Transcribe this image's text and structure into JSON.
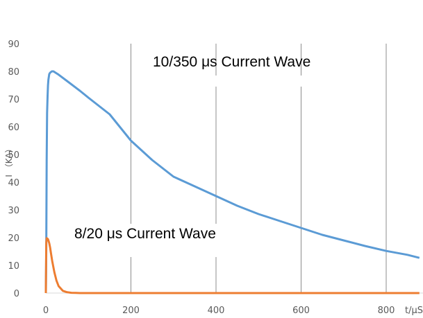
{
  "chart_data": {
    "type": "line",
    "xlabel": "t/μS",
    "ylabel": "I （KA）",
    "xlim": [
      0,
      890
    ],
    "ylim": [
      0,
      90
    ],
    "xticks": [
      0,
      200,
      400,
      600,
      800
    ],
    "yticks": [
      0,
      10,
      20,
      30,
      40,
      50,
      60,
      70,
      80,
      90
    ],
    "grid": "vertical",
    "annotations": [
      {
        "text": "10/350 μs  Current Wave",
        "series": 0
      },
      {
        "text": "8/20 μs Current Wave",
        "series": 1
      }
    ],
    "series": [
      {
        "color": "#5b9bd5",
        "x": [
          0,
          1,
          2,
          3,
          4,
          5,
          6,
          8,
          10,
          14,
          18,
          22,
          30,
          50,
          80,
          100,
          150,
          200,
          250,
          300,
          350,
          400,
          450,
          500,
          550,
          600,
          650,
          700,
          750,
          800,
          850,
          878
        ],
        "y": [
          0,
          15,
          48,
          65,
          71,
          75,
          77,
          79,
          79.5,
          80,
          80,
          79.6,
          78.8,
          76.5,
          73,
          70.5,
          64.5,
          55,
          48,
          42,
          38.5,
          35,
          31.5,
          28.5,
          26,
          23.5,
          21,
          19,
          17,
          15.2,
          13.8,
          12.7
        ]
      },
      {
        "color": "#ed7d31",
        "x": [
          0,
          1,
          2,
          3,
          4,
          5,
          6,
          8,
          10,
          12,
          15,
          20,
          25,
          30,
          40,
          50,
          60,
          70,
          80,
          100,
          200,
          400,
          600,
          800,
          878
        ],
        "y": [
          0,
          18,
          19.8,
          19.7,
          19.6,
          19.4,
          19,
          18,
          16.5,
          14.5,
          11.5,
          7.5,
          4.5,
          2.5,
          0.8,
          0.3,
          0.1,
          0.05,
          0,
          0,
          0,
          0,
          0,
          0,
          0
        ]
      }
    ]
  }
}
